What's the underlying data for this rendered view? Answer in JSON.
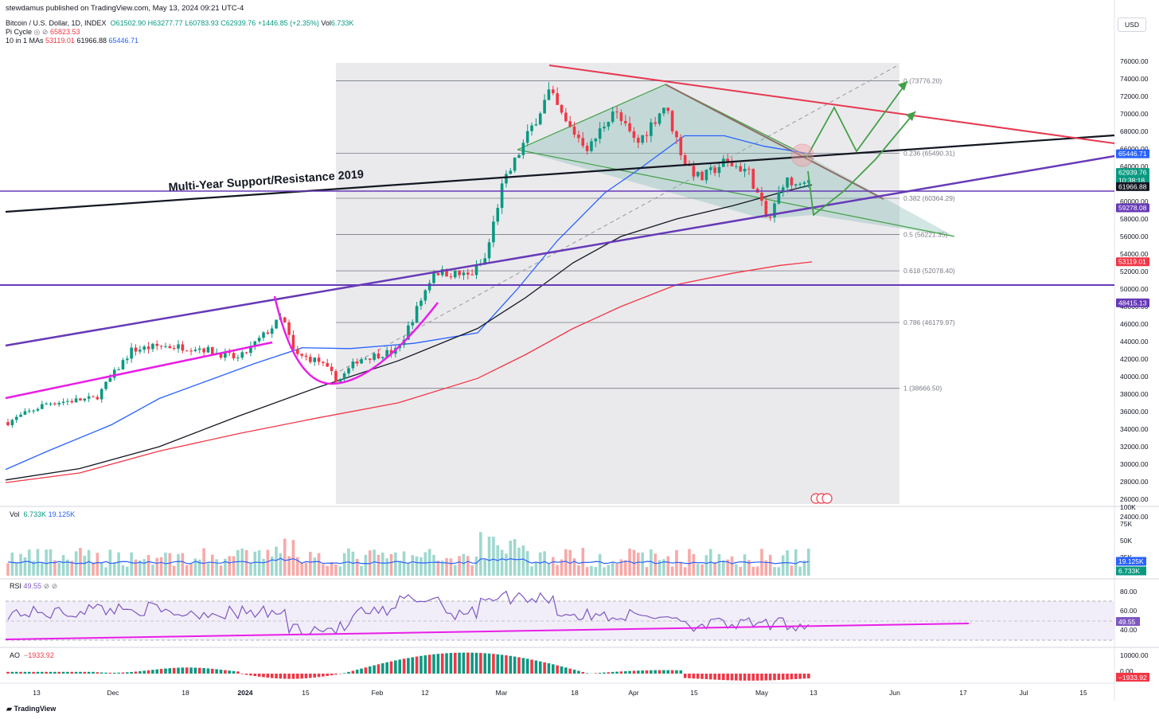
{
  "header": {
    "published": "stewdamus published on TradingView.com, May 13, 2024 09:21 UTC-4",
    "symbol": "Bitcoin / U.S. Dollar, 1D, INDEX",
    "ohlc": {
      "o": "O61502.90",
      "h": "H63277.77",
      "l": "L60783.93",
      "c": "C62939.76",
      "chg": "+1446.85 (+2.35%)",
      "vol_label": "Vol",
      "vol": "6.733K"
    },
    "pi": {
      "name": "Pi Cycle",
      "icons": "◎ ⊘",
      "value": "65823.53"
    },
    "ma": {
      "name": "10 in 1 MAs",
      "v1": "53119.01",
      "v2": "61966.88",
      "v3": "65446.71"
    },
    "currency": "USD",
    "brand": "TradingView"
  },
  "colors": {
    "up": "#089981",
    "down": "#f23645",
    "ma50": "#2962ff",
    "ma100": "#131722",
    "ma200": "#f23645",
    "purple": "#673ab7",
    "magenta": "#e91ee8",
    "green_proj": "#43a047",
    "red_tl": "#e53950",
    "fib_bg": "#e6e6ea"
  },
  "chart_data": [
    {
      "type": "candlestick",
      "title": "Bitcoin / U.S. Dollar, 1D, INDEX",
      "ylim": [
        23000,
        78000
      ],
      "y_ticks": [
        76000,
        74000,
        72000,
        70000,
        68000,
        66000,
        64000,
        62000,
        60000,
        58000,
        56000,
        54000,
        52000,
        50000,
        48000,
        46000,
        44000,
        42000,
        40000,
        38000,
        36000,
        34000,
        32000,
        30000,
        28000,
        26000,
        24000
      ],
      "x_ticks": [
        "13",
        "Dec",
        "18",
        "2024",
        "15",
        "Feb",
        "12",
        "Mar",
        "18",
        "Apr",
        "15",
        "May",
        "13",
        "Jun",
        "17",
        "Jul",
        "15"
      ],
      "price_tags": [
        {
          "value": "65446.71",
          "color": "#2962ff"
        },
        {
          "value": "62939.76",
          "color": "#089981"
        },
        {
          "value": "10:38:18",
          "color": "#089981"
        },
        {
          "value": "61966.88",
          "color": "#131722"
        },
        {
          "value": "59278.08",
          "color": "#673ab7"
        },
        {
          "value": "53119.01",
          "color": "#f23645"
        },
        {
          "value": "48415.13",
          "color": "#673ab7"
        }
      ],
      "fib_levels": [
        {
          "ratio": "0",
          "price": 73776.2
        },
        {
          "ratio": "0.236",
          "price": 65490.31
        },
        {
          "ratio": "0.382",
          "price": 60364.29
        },
        {
          "ratio": "0.5",
          "price": 56221.35
        },
        {
          "ratio": "0.618",
          "price": 52078.4
        },
        {
          "ratio": "0.786",
          "price": 46179.97
        },
        {
          "ratio": "1",
          "price": 38666.5
        }
      ],
      "annotations": [
        "Multi-Year Support/Resistance 2019"
      ],
      "horizontal_lines": [
        59278.08,
        48415.13
      ],
      "moving_averages": {
        "ma_short": 65446.71,
        "ma_mid": 61966.88,
        "ma_long": 53119.01
      },
      "last_close": 62939.76
    },
    {
      "type": "bar",
      "title": "Vol",
      "values_label": [
        "6.733K",
        "19.125K"
      ],
      "y_ticks": [
        "100K",
        "75K",
        "50K",
        "25K"
      ],
      "tags": [
        "19.125K",
        "6.733K"
      ]
    },
    {
      "type": "line",
      "title": "RSI",
      "value": "49.55",
      "y_ticks": [
        "80.00",
        "60.00",
        "40.00"
      ],
      "bands": [
        70,
        30
      ],
      "tag": "49.55"
    },
    {
      "type": "bar",
      "title": "AO",
      "value": "−1933.92",
      "y_ticks": [
        "10000.00",
        "0.00"
      ],
      "tag": "−1933.92"
    }
  ]
}
